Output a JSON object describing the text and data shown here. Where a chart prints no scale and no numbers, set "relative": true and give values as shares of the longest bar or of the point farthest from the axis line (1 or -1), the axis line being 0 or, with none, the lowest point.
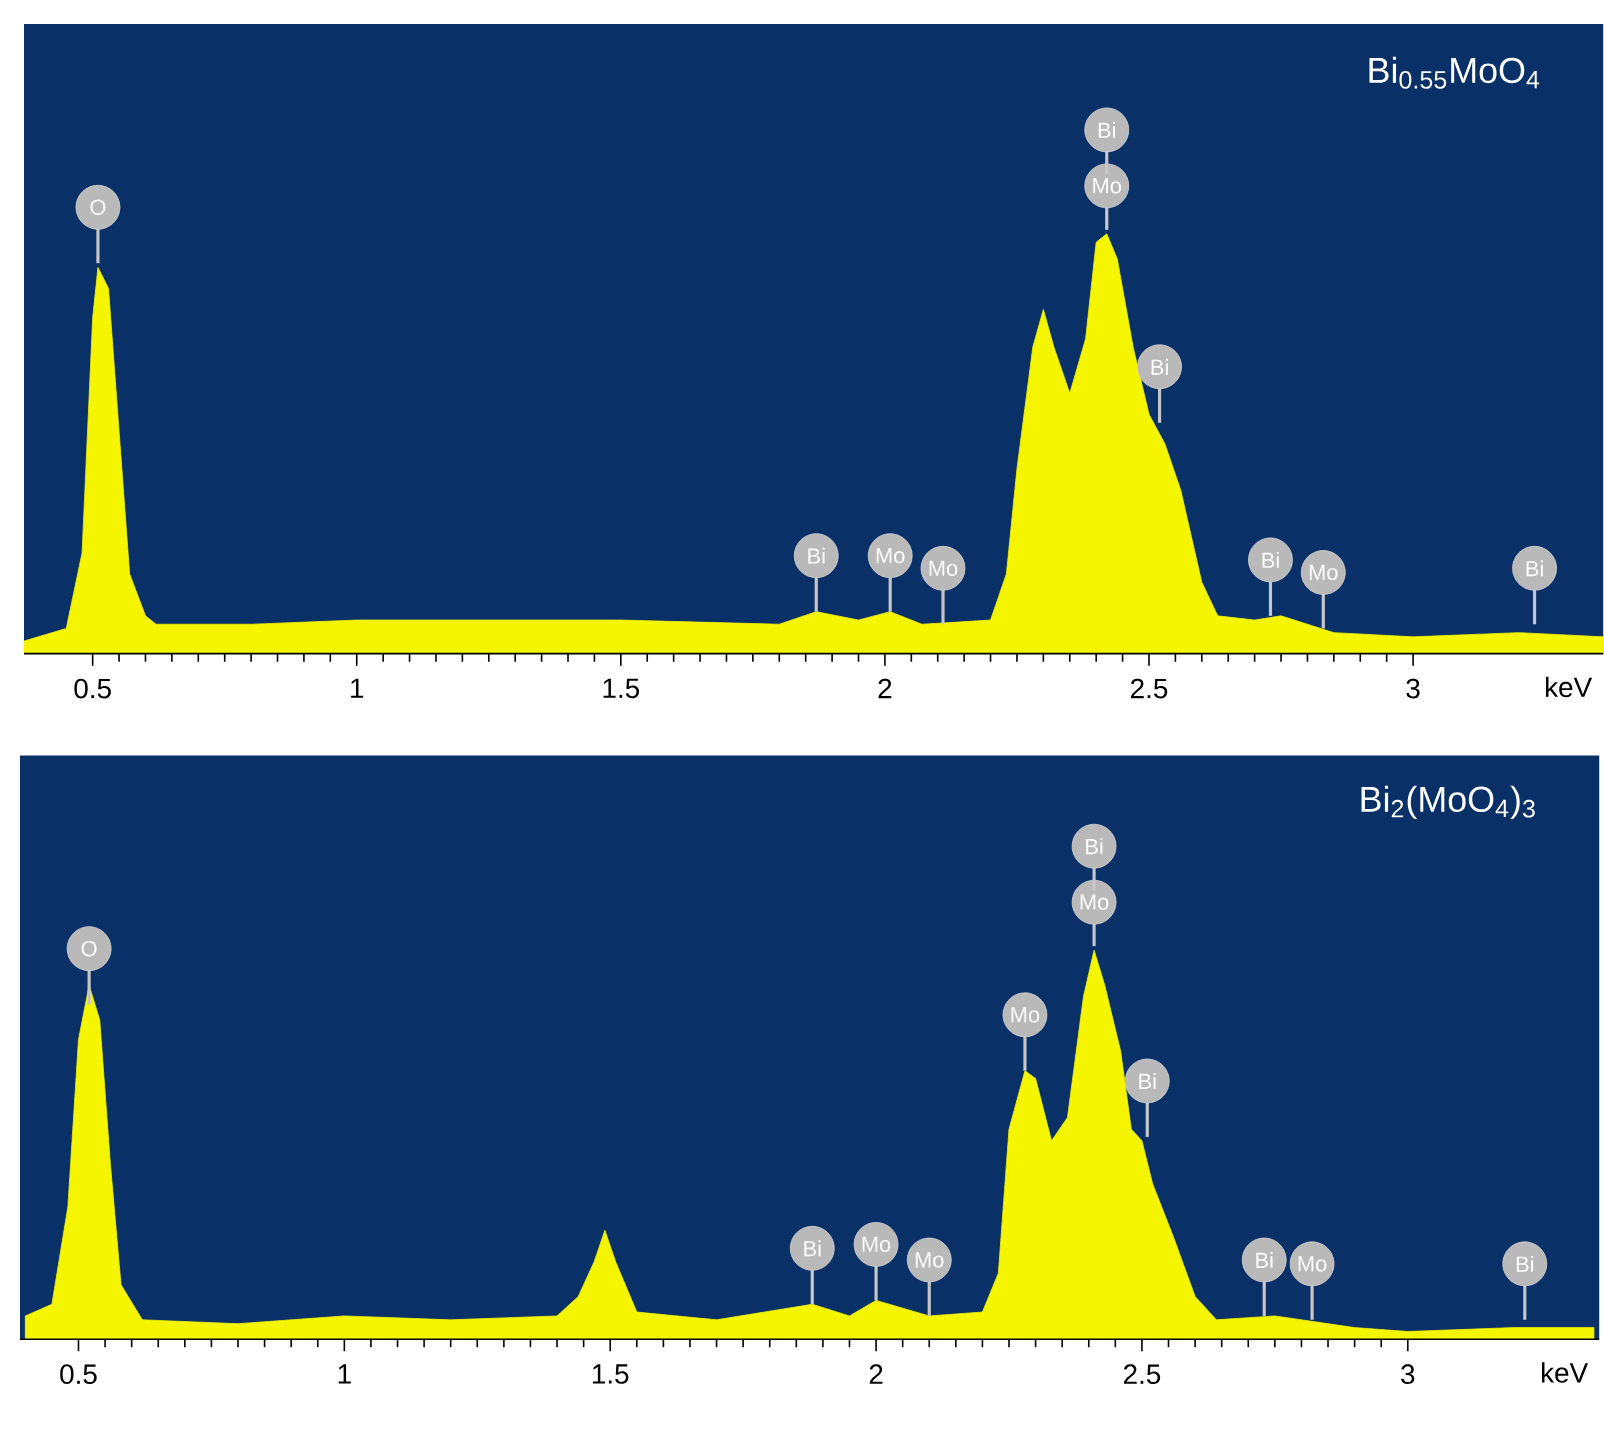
{
  "chart_data": [
    {
      "type": "area",
      "title": "Bi$_{0.55}$MoO$_{4}$",
      "xlabel": "keV",
      "relative": true,
      "color": "#f5f500",
      "xlim": [
        0.37,
        3.36
      ],
      "xticks": [
        0.5,
        1,
        1.5,
        2,
        2.5,
        3
      ],
      "x": [
        0.37,
        0.45,
        0.48,
        0.5,
        0.51,
        0.53,
        0.55,
        0.57,
        0.6,
        0.62,
        0.8,
        1.0,
        1.5,
        1.8,
        1.87,
        1.95,
        2.01,
        2.07,
        2.2,
        2.23,
        2.25,
        2.28,
        2.3,
        2.32,
        2.35,
        2.38,
        2.4,
        2.42,
        2.44,
        2.47,
        2.5,
        2.53,
        2.56,
        2.6,
        2.63,
        2.7,
        2.75,
        2.85,
        3.0,
        3.2,
        3.36
      ],
      "values": [
        0.03,
        0.06,
        0.24,
        0.8,
        0.92,
        0.87,
        0.53,
        0.19,
        0.09,
        0.07,
        0.07,
        0.08,
        0.08,
        0.07,
        0.1,
        0.08,
        0.1,
        0.07,
        0.08,
        0.19,
        0.44,
        0.73,
        0.82,
        0.73,
        0.62,
        0.75,
        0.98,
        1.0,
        0.94,
        0.73,
        0.57,
        0.5,
        0.39,
        0.17,
        0.09,
        0.08,
        0.09,
        0.05,
        0.04,
        0.05,
        0.04
      ],
      "annotations": [
        {
          "text": "O",
          "x": 0.51,
          "y": 0.93
        },
        {
          "text": "Bi",
          "x": 1.87,
          "y": 0.1
        },
        {
          "text": "Mo",
          "x": 2.01,
          "y": 0.1
        },
        {
          "text": "Mo",
          "x": 2.11,
          "y": 0.07
        },
        "Mo",
        "Bi",
        {
          "text": "Bi",
          "x": 2.52,
          "y": 0.55
        },
        {
          "text": "Bi",
          "x": 2.73,
          "y": 0.09
        },
        {
          "text": "Mo",
          "x": 2.83,
          "y": 0.06
        },
        {
          "text": "Bi",
          "x": 3.23,
          "y": 0.07
        }
      ]
    },
    {
      "type": "area",
      "title": "Bi$_{2}$(MoO$_{4}$)$_{3}$",
      "xlabel": "keV",
      "relative": true,
      "color": "#f5f500",
      "xlim": [
        0.39,
        3.36
      ],
      "xticks": [
        0.5,
        1,
        1.5,
        2,
        2.5,
        3
      ],
      "x": [
        0.4,
        0.45,
        0.48,
        0.5,
        0.52,
        0.54,
        0.56,
        0.58,
        0.62,
        0.8,
        1.0,
        1.2,
        1.4,
        1.44,
        1.47,
        1.49,
        1.51,
        1.55,
        1.7,
        1.88,
        1.95,
        2.0,
        2.1,
        2.2,
        2.23,
        2.25,
        2.28,
        2.3,
        2.33,
        2.36,
        2.39,
        2.41,
        2.43,
        2.46,
        2.48,
        2.5,
        2.52,
        2.56,
        2.6,
        2.64,
        2.75,
        2.9,
        3.0,
        3.2,
        3.35
      ],
      "values": [
        0.06,
        0.09,
        0.34,
        0.77,
        0.91,
        0.82,
        0.45,
        0.14,
        0.05,
        0.04,
        0.06,
        0.05,
        0.06,
        0.11,
        0.2,
        0.28,
        0.2,
        0.07,
        0.05,
        0.09,
        0.06,
        0.1,
        0.06,
        0.07,
        0.17,
        0.54,
        0.69,
        0.67,
        0.51,
        0.57,
        0.88,
        1.0,
        0.91,
        0.74,
        0.54,
        0.51,
        0.4,
        0.26,
        0.11,
        0.05,
        0.06,
        0.03,
        0.02,
        0.03,
        0.03
      ],
      "annotations": [
        {
          "text": "O",
          "x": 0.52,
          "y": 0.86
        },
        {
          "text": "Bi",
          "x": 1.88,
          "y": 0.09
        },
        {
          "text": "Mo",
          "x": 2.0,
          "y": 0.1
        },
        {
          "text": "Mo",
          "x": 2.1,
          "y": 0.06
        },
        {
          "text": "Mo",
          "x": 2.28,
          "y": 0.69
        },
        "Mo",
        "Bi",
        {
          "text": "Bi",
          "x": 2.51,
          "y": 0.52
        },
        {
          "text": "Bi",
          "x": 2.73,
          "y": 0.06
        },
        {
          "text": "Mo",
          "x": 2.82,
          "y": 0.05
        },
        {
          "text": "Bi",
          "x": 3.22,
          "y": 0.05
        }
      ]
    }
  ]
}
